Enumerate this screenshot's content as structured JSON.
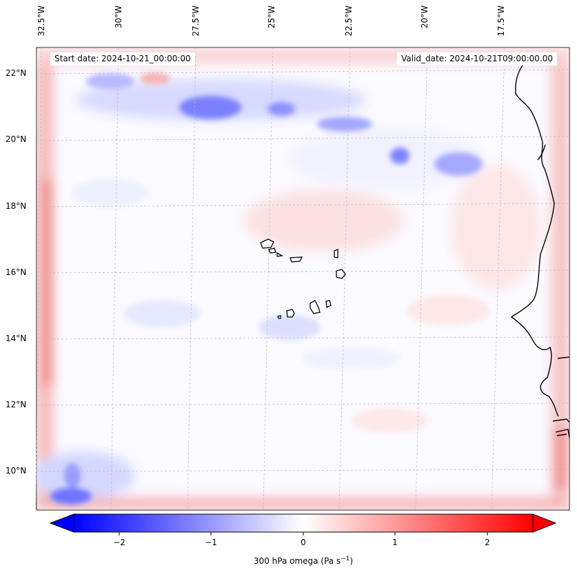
{
  "map": {
    "start_date_label": "Start date: 2024-10-21_00:00:00",
    "valid_date_label": "Valid_date: 2024-10-21T09:00:00.00",
    "longitude_labels": [
      "32.5°W",
      "30°W",
      "27.5°W",
      "25°W",
      "22.5°W",
      "20°W",
      "17.5°W"
    ],
    "latitude_labels": [
      "22°N",
      "20°N",
      "18°N",
      "16°N",
      "14°N",
      "12°N",
      "10°N"
    ]
  },
  "colorbar": {
    "ticks": [
      "−2",
      "−1",
      "0",
      "1",
      "2"
    ],
    "title_main": "300 hPa omega (Pa s",
    "title_exponent": "−1",
    "title_end": ")",
    "colors": {
      "negative": "#0000ff",
      "neutral": "#ffffff",
      "positive": "#ff0000"
    }
  }
}
